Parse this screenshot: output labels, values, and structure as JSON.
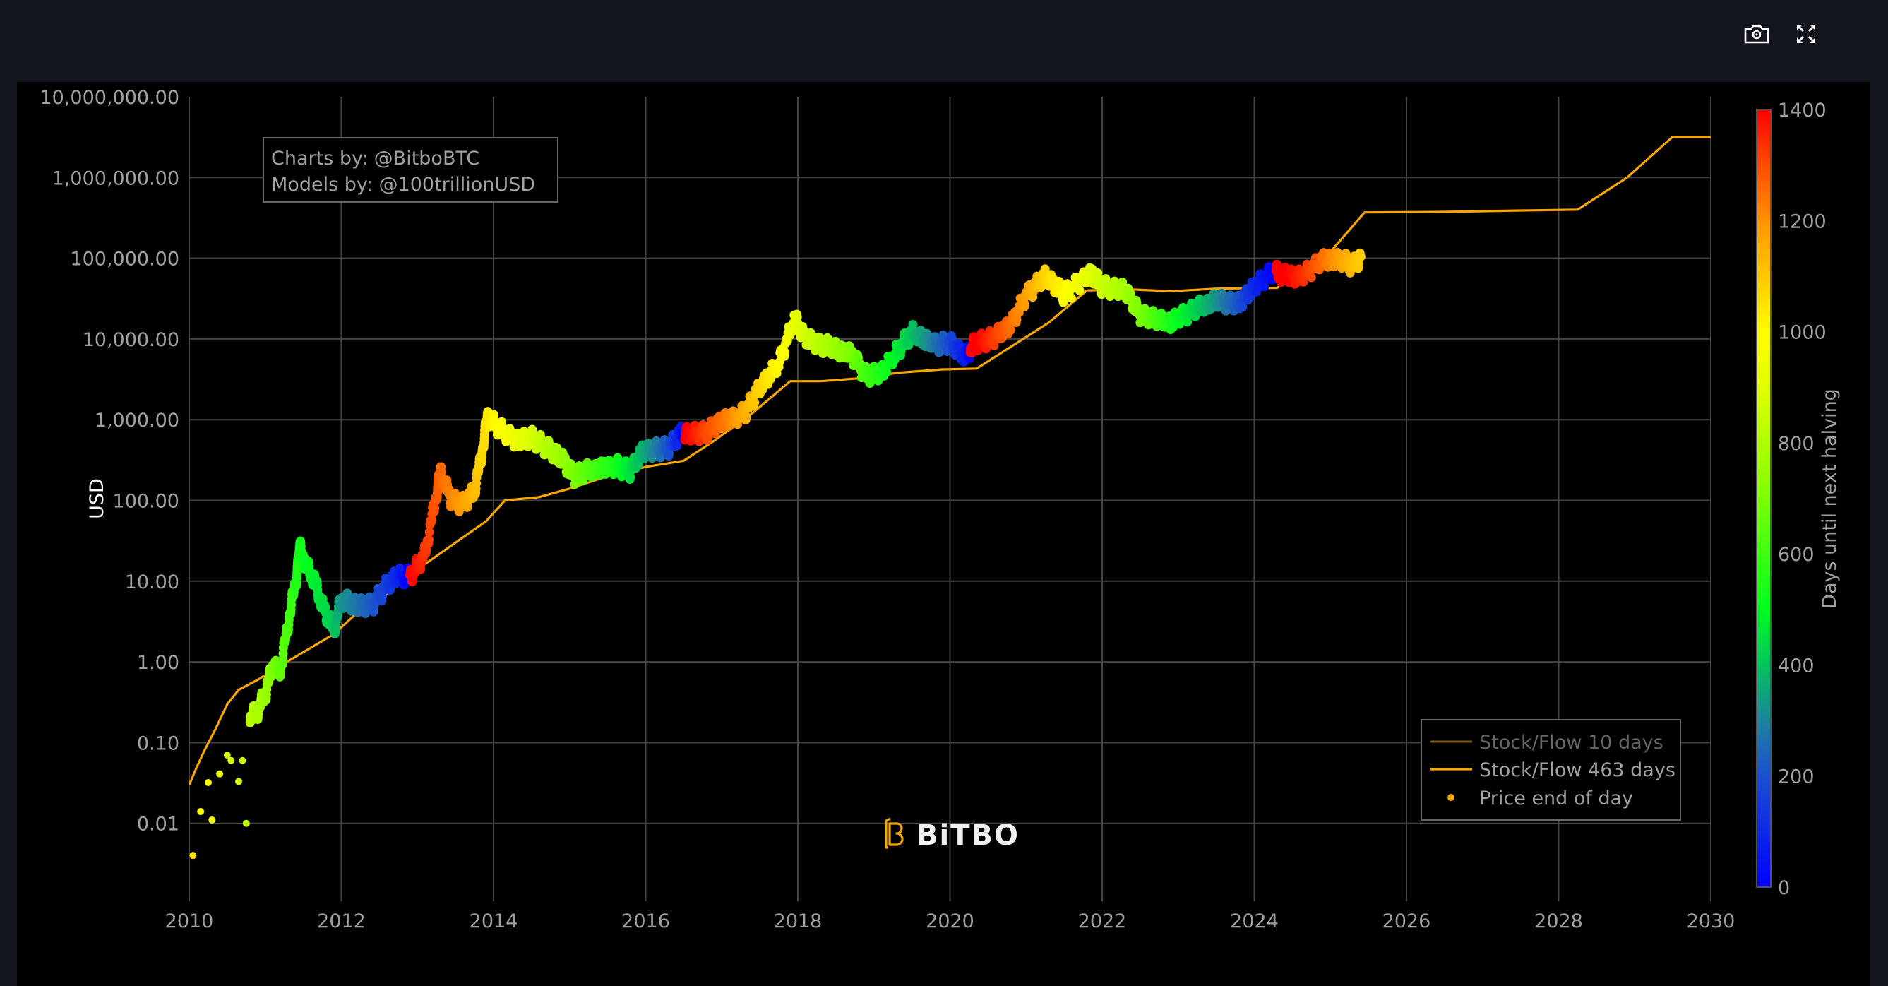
{
  "toolbar": {
    "camera_label": "Download plot as a png",
    "fullscreen_label": "Fullscreen"
  },
  "annotation": {
    "line1": "Charts by: @BitboBTC",
    "line2": "Models by: @100trillionUSD"
  },
  "logo": {
    "text": "BiTBO"
  },
  "legend": {
    "items": [
      {
        "label": "Stock/Flow 10 days",
        "color": "#7a5a10",
        "type": "line",
        "dimmed": true
      },
      {
        "label": "Stock/Flow 463 days",
        "color": "#f7a600",
        "type": "line",
        "dimmed": false
      },
      {
        "label": "Price end of day",
        "color": "#f7a600",
        "type": "marker",
        "dimmed": false
      }
    ]
  },
  "colorbar": {
    "title": "Days until next halving",
    "ticks": [
      "0",
      "200",
      "400",
      "600",
      "800",
      "1000",
      "1200",
      "1400"
    ],
    "min": 0,
    "max": 1400,
    "colors": [
      "#0000ff",
      "#1f6fa0",
      "#00ff20",
      "#aaff00",
      "#ffff00",
      "#ff9a00",
      "#ff0000"
    ]
  },
  "chart_data": {
    "type": "scatter",
    "title": "",
    "xlabel": "",
    "ylabel": "USD",
    "x_ticks": [
      "2010",
      "2012",
      "2014",
      "2016",
      "2018",
      "2020",
      "2022",
      "2024",
      "2026",
      "2028",
      "2030"
    ],
    "y_ticks": [
      "0.01",
      "0.10",
      "1.00",
      "10.00",
      "100.00",
      "1,000.00",
      "10,000.00",
      "100,000.00",
      "1,000,000.00",
      "10,000,000.00"
    ],
    "xlim": [
      2010,
      2030
    ],
    "ylim_log": [
      0.0011,
      10000000
    ],
    "y_scale": "log",
    "grid": true,
    "legend_position": "bottom-right",
    "series": [
      {
        "name": "Stock/Flow 463 days",
        "type": "line",
        "color": "#f7a600",
        "points": [
          [
            2010.0,
            0.03
          ],
          [
            2010.1,
            0.05
          ],
          [
            2010.2,
            0.08
          ],
          [
            2010.35,
            0.15
          ],
          [
            2010.5,
            0.3
          ],
          [
            2010.65,
            0.45
          ],
          [
            2010.9,
            0.6
          ],
          [
            2011.2,
            0.9
          ],
          [
            2011.6,
            1.5
          ],
          [
            2011.9,
            2.2
          ],
          [
            2012.2,
            4
          ],
          [
            2012.6,
            7
          ],
          [
            2013.0,
            14
          ],
          [
            2013.5,
            30
          ],
          [
            2013.9,
            55
          ],
          [
            2014.15,
            100
          ],
          [
            2014.6,
            110
          ],
          [
            2015.0,
            140
          ],
          [
            2015.5,
            200
          ],
          [
            2016.0,
            260
          ],
          [
            2016.5,
            310
          ],
          [
            2016.9,
            550
          ],
          [
            2017.4,
            1200
          ],
          [
            2017.9,
            3000
          ],
          [
            2018.3,
            3000
          ],
          [
            2018.9,
            3300
          ],
          [
            2019.3,
            3800
          ],
          [
            2019.9,
            4200
          ],
          [
            2020.35,
            4300
          ],
          [
            2020.8,
            8000
          ],
          [
            2021.3,
            16000
          ],
          [
            2021.8,
            40000
          ],
          [
            2022.4,
            41000
          ],
          [
            2022.9,
            39000
          ],
          [
            2023.5,
            42000
          ],
          [
            2024.3,
            43000
          ],
          [
            2024.6,
            65000
          ],
          [
            2025.0,
            120000
          ],
          [
            2025.45,
            370000
          ],
          [
            2026.5,
            375000
          ],
          [
            2027.5,
            390000
          ],
          [
            2028.25,
            400000
          ],
          [
            2028.9,
            1000000
          ],
          [
            2029.5,
            3200000
          ],
          [
            2030.0,
            3200000
          ]
        ]
      },
      {
        "name": "Price end of day",
        "type": "scatter",
        "color_by": "days_until_next_halving",
        "points": [
          [
            2010.05,
            0.004,
            1050
          ],
          [
            2010.15,
            0.014,
            1000
          ],
          [
            2010.25,
            0.032,
            980
          ],
          [
            2010.3,
            0.011,
            950
          ],
          [
            2010.4,
            0.041,
            930
          ],
          [
            2010.5,
            0.07,
            890
          ],
          [
            2010.55,
            0.06,
            880
          ],
          [
            2010.65,
            0.033,
            860
          ],
          [
            2010.7,
            0.06,
            850
          ],
          [
            2010.75,
            0.01,
            830
          ],
          [
            2010.8,
            0.2,
            820
          ],
          [
            2010.9,
            0.25,
            790
          ],
          [
            2011.0,
            0.4,
            760
          ],
          [
            2011.1,
            0.9,
            700
          ],
          [
            2011.2,
            0.8,
            660
          ],
          [
            2011.3,
            3.0,
            620
          ],
          [
            2011.4,
            10,
            560
          ],
          [
            2011.45,
            26,
            540
          ],
          [
            2011.55,
            15,
            510
          ],
          [
            2011.65,
            10,
            480
          ],
          [
            2011.75,
            5,
            450
          ],
          [
            2011.9,
            2.5,
            410
          ],
          [
            2012.0,
            6,
            330
          ],
          [
            2012.2,
            5,
            280
          ],
          [
            2012.4,
            5,
            220
          ],
          [
            2012.6,
            9,
            150
          ],
          [
            2012.75,
            12,
            90
          ],
          [
            2012.85,
            11,
            20
          ],
          [
            2012.95,
            13,
            1390
          ],
          [
            2013.1,
            22,
            1330
          ],
          [
            2013.25,
            120,
            1280
          ],
          [
            2013.3,
            230,
            1260
          ],
          [
            2013.45,
            100,
            1220
          ],
          [
            2013.6,
            90,
            1180
          ],
          [
            2013.75,
            130,
            1130
          ],
          [
            2013.85,
            400,
            1070
          ],
          [
            2013.92,
            1100,
            1040
          ],
          [
            2014.05,
            800,
            1000
          ],
          [
            2014.3,
            550,
            930
          ],
          [
            2014.5,
            600,
            880
          ],
          [
            2014.7,
            450,
            810
          ],
          [
            2014.9,
            330,
            760
          ],
          [
            2015.05,
            200,
            700
          ],
          [
            2015.3,
            240,
            620
          ],
          [
            2015.6,
            270,
            540
          ],
          [
            2015.8,
            230,
            450
          ],
          [
            2015.95,
            400,
            380
          ],
          [
            2016.1,
            420,
            310
          ],
          [
            2016.3,
            450,
            200
          ],
          [
            2016.48,
            700,
            40
          ],
          [
            2016.55,
            650,
            1400
          ],
          [
            2016.8,
            700,
            1300
          ],
          [
            2017.0,
            950,
            1250
          ],
          [
            2017.3,
            1200,
            1150
          ],
          [
            2017.5,
            2500,
            1080
          ],
          [
            2017.75,
            5000,
            1000
          ],
          [
            2017.96,
            18000,
            920
          ],
          [
            2018.1,
            10000,
            870
          ],
          [
            2018.4,
            8000,
            790
          ],
          [
            2018.7,
            6500,
            700
          ],
          [
            2018.9,
            3500,
            610
          ],
          [
            2019.1,
            3800,
            550
          ],
          [
            2019.35,
            8000,
            460
          ],
          [
            2019.5,
            12000,
            400
          ],
          [
            2019.8,
            8500,
            280
          ],
          [
            2020.0,
            9000,
            180
          ],
          [
            2020.2,
            6000,
            60
          ],
          [
            2020.33,
            9000,
            1420
          ],
          [
            2020.55,
            10000,
            1330
          ],
          [
            2020.8,
            15000,
            1250
          ],
          [
            2021.0,
            35000,
            1180
          ],
          [
            2021.25,
            60000,
            1080
          ],
          [
            2021.5,
            35000,
            1000
          ],
          [
            2021.85,
            65000,
            900
          ],
          [
            2022.0,
            45000,
            850
          ],
          [
            2022.3,
            40000,
            780
          ],
          [
            2022.5,
            20000,
            700
          ],
          [
            2022.9,
            16000,
            540
          ],
          [
            2023.2,
            23000,
            440
          ],
          [
            2023.5,
            30000,
            330
          ],
          [
            2023.8,
            27000,
            200
          ],
          [
            2024.0,
            45000,
            100
          ],
          [
            2024.25,
            70000,
            10
          ],
          [
            2024.32,
            64000,
            1440
          ],
          [
            2024.6,
            58000,
            1350
          ],
          [
            2024.9,
            95000,
            1250
          ],
          [
            2025.15,
            96000,
            1170
          ],
          [
            2025.3,
            80000,
            1120
          ],
          [
            2025.4,
            105000,
            1090
          ]
        ]
      }
    ]
  }
}
